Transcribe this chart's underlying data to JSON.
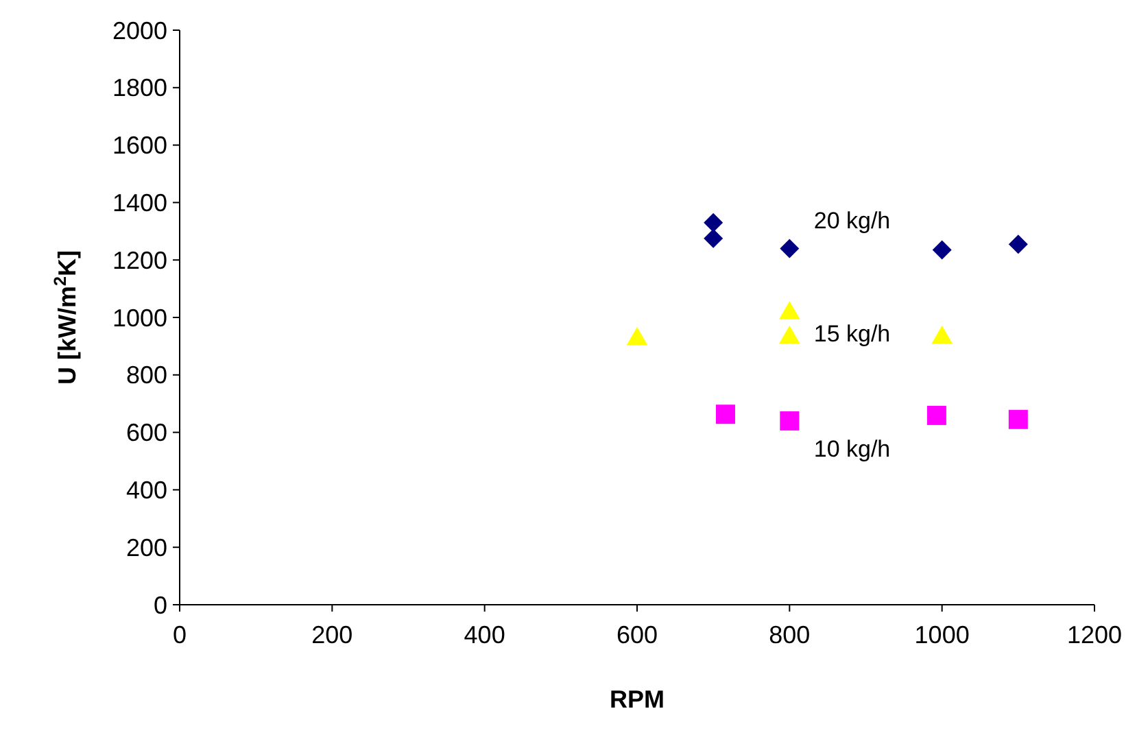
{
  "chart_data": {
    "type": "scatter",
    "xlabel": "RPM",
    "ylabel": "U [kW/m$^{2}$K]",
    "xlim": [
      0,
      1200
    ],
    "xticks": [
      0,
      200,
      400,
      600,
      800,
      1000,
      1200
    ],
    "ylim": [
      0,
      2000
    ],
    "yticks": [
      0,
      200,
      400,
      600,
      800,
      1000,
      1200,
      1400,
      1600,
      1800,
      2000
    ],
    "grid": false,
    "series": [
      {
        "name": "10 kg/h",
        "color": "#ff00ff",
        "marker": "square",
        "x": [
          716,
          800,
          993,
          1100
        ],
        "values": [
          663,
          640,
          659,
          645
        ]
      },
      {
        "name": "15 kg/h",
        "color": "#ffff00",
        "marker": "triangle",
        "x": [
          600,
          800,
          800,
          1000
        ],
        "values": [
          930,
          1020,
          935,
          935
        ]
      },
      {
        "name": "20 kg/h",
        "color": "#000080",
        "marker": "diamond",
        "x": [
          700,
          700,
          800,
          1000,
          1100
        ],
        "values": [
          1330,
          1275,
          1240,
          1235,
          1255
        ]
      }
    ]
  }
}
